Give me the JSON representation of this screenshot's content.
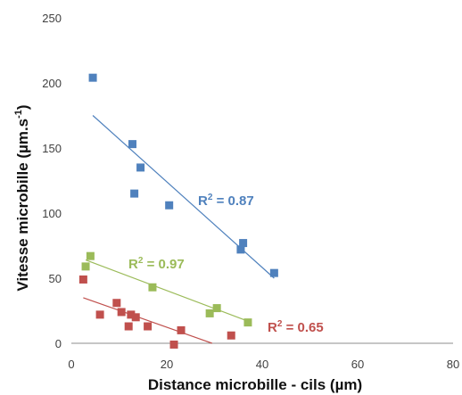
{
  "chart_data": {
    "type": "scatter",
    "title": "",
    "xlabel": "Distance microbille - cils (µm)",
    "ylabel_main": "Vitesse microbille (µm.s",
    "ylabel_sup": "-1",
    "ylabel_end": ")",
    "xlim": [
      0,
      80
    ],
    "ylim": [
      0,
      250
    ],
    "xticks": [
      "0",
      "20",
      "40",
      "60",
      "80"
    ],
    "yticks": [
      "0",
      "50",
      "100",
      "150",
      "200",
      "250"
    ],
    "grid": false,
    "legend": "none",
    "series": [
      {
        "color": "#4f81bd",
        "points": [
          [
            4.5,
            204
          ],
          [
            12.8,
            153
          ],
          [
            13.2,
            115
          ],
          [
            14.5,
            135
          ],
          [
            20.5,
            106
          ],
          [
            35.5,
            72
          ],
          [
            36,
            77
          ],
          [
            42.5,
            54
          ]
        ],
        "trendline": [
          [
            4.5,
            175
          ],
          [
            42.5,
            50
          ]
        ],
        "r2_prefix": "R",
        "r2_sup": "2",
        "r2_value": " = 0.87"
      },
      {
        "color": "#9bbb59",
        "points": [
          [
            3,
            59
          ],
          [
            4,
            67
          ],
          [
            17,
            43
          ],
          [
            29,
            23
          ],
          [
            30.5,
            27
          ],
          [
            37,
            16
          ]
        ],
        "trendline": [
          [
            3,
            64
          ],
          [
            37,
            17
          ]
        ],
        "r2_prefix": "R",
        "r2_sup": "2",
        "r2_value": " = 0.97"
      },
      {
        "color": "#c0504d",
        "points": [
          [
            2.5,
            49
          ],
          [
            6,
            22
          ],
          [
            9.5,
            31
          ],
          [
            10.5,
            24
          ],
          [
            12,
            13
          ],
          [
            12.5,
            22
          ],
          [
            13.5,
            20
          ],
          [
            16,
            13
          ],
          [
            21.5,
            -1
          ],
          [
            23,
            10
          ],
          [
            33.5,
            6
          ]
        ],
        "trendline": [
          [
            2.5,
            35
          ],
          [
            29.5,
            0
          ]
        ],
        "r2_prefix": "R",
        "r2_sup": "2",
        "r2_value": " = 0.65"
      }
    ]
  }
}
